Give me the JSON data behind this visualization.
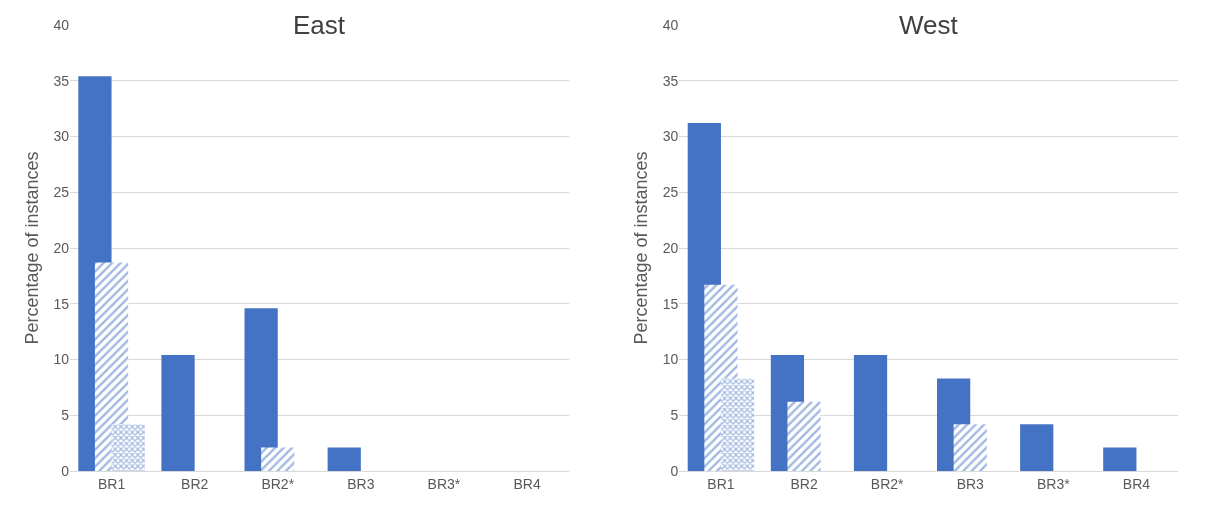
{
  "chart_data": [
    {
      "type": "bar",
      "title": "East",
      "ylabel": "Percentage of instances",
      "categories": [
        "BR1",
        "BR2",
        "BR2*",
        "BR3",
        "BR3*",
        "BR4"
      ],
      "ylim": [
        0,
        40
      ],
      "yticks": [
        0,
        5,
        10,
        15,
        20,
        25,
        30,
        35,
        40
      ],
      "grid": "y",
      "series": [
        {
          "color": "#4472c4",
          "values": [
            35.4,
            10.4,
            14.6,
            2.1,
            0,
            0
          ]
        },
        {
          "color": "#4472c4",
          "values": [
            18.7,
            0,
            2.1,
            0,
            0,
            0
          ]
        },
        {
          "color": "#4472c4",
          "values": [
            4.2,
            0,
            0,
            0,
            0,
            0
          ]
        }
      ]
    },
    {
      "type": "bar",
      "title": "West",
      "ylabel": "Percentage of instances",
      "categories": [
        "BR1",
        "BR2",
        "BR2*",
        "BR3",
        "BR3*",
        "BR4"
      ],
      "ylim": [
        0,
        40
      ],
      "yticks": [
        0,
        5,
        10,
        15,
        20,
        25,
        30,
        35,
        40
      ],
      "grid": "y",
      "series": [
        {
          "color": "#4472c4",
          "values": [
            31.2,
            10.4,
            10.4,
            8.3,
            4.2,
            2.1
          ]
        },
        {
          "color": "#4472c4",
          "values": [
            16.7,
            6.2,
            0,
            4.2,
            0,
            0
          ]
        },
        {
          "color": "#4472c4",
          "values": [
            8.3,
            0,
            0,
            0,
            0,
            0
          ]
        }
      ]
    }
  ]
}
